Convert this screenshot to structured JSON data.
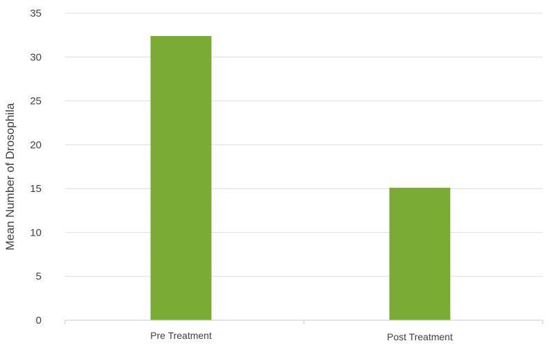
{
  "chart_data": {
    "type": "bar",
    "title": "",
    "xlabel": "",
    "ylabel": "Mean Number of Drosophila",
    "categories": [
      "Pre Treatment",
      "Post Treatment"
    ],
    "values": [
      32.4,
      15.1
    ],
    "ylim": [
      0,
      35
    ],
    "yticks": [
      0,
      5,
      10,
      15,
      20,
      25,
      30,
      35
    ],
    "grid": true,
    "legend": "none",
    "bar_color": "#7aab35",
    "grid_color": "#dddddd",
    "text_color": "#404040"
  }
}
